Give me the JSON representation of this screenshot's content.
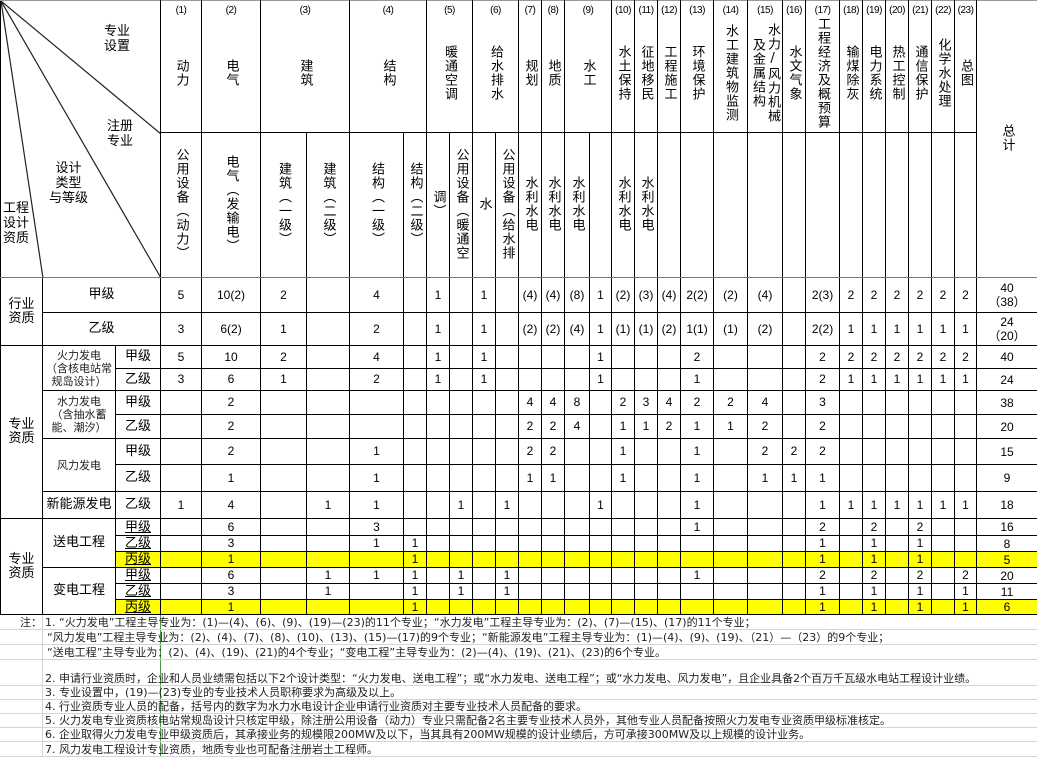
{
  "corner": {
    "specialty_setting": "专业\n设置",
    "registered_specialty": "注册\n专业",
    "design_type_grade": "设计\n类型\n与等级",
    "qualification": "工程\n设计\n资质"
  },
  "groups": [
    {
      "num": "(1)",
      "name": "动力"
    },
    {
      "num": "(2)",
      "name": "电气"
    },
    {
      "num": "(3)",
      "name": "建筑"
    },
    {
      "num": "(4)",
      "name": "结构"
    },
    {
      "num": "(5)",
      "name": "暖通空调"
    },
    {
      "num": "(6)",
      "name": "给水排水"
    },
    {
      "num": "(7)",
      "name": "规划"
    },
    {
      "num": "(8)",
      "name": "地质"
    },
    {
      "num": "(9)",
      "name": "水工"
    },
    {
      "num": "(10)",
      "name": "水土保持"
    },
    {
      "num": "(11)",
      "name": "征地移民"
    },
    {
      "num": "(12)",
      "name": "工程施工"
    },
    {
      "num": "(13)",
      "name": "环境保护"
    },
    {
      "num": "(14)",
      "name": "水工建筑物监测"
    },
    {
      "num": "(15)",
      "name": "水力/风力机械及金属结构"
    },
    {
      "num": "(16)",
      "name": "水文气象"
    },
    {
      "num": "(17)",
      "name": "工程经济及概预算"
    },
    {
      "num": "(18)",
      "name": "输煤除灰"
    },
    {
      "num": "(19)",
      "name": "电力系统"
    },
    {
      "num": "(20)",
      "name": "热工控制"
    },
    {
      "num": "(21)",
      "name": "通信保护"
    },
    {
      "num": "(22)",
      "name": "化学水处理"
    },
    {
      "num": "(23)",
      "name": "总图"
    }
  ],
  "total_label": "总计",
  "subheaders": [
    "公用设备（动力）",
    "电气（发输电）",
    "建筑（一级）",
    "建筑（二级）",
    "结构（一级）",
    "结构（二级）",
    "调）",
    "公用设备（暖通空",
    "水",
    "公用设备（给水排",
    "水利水电",
    "水利水电",
    "水利水电",
    "",
    "水利水电",
    "水利水电",
    "",
    "",
    "",
    "",
    "",
    "",
    "",
    "",
    "",
    "",
    "",
    ""
  ],
  "sections": [
    {
      "label": "行业资质",
      "rows": [
        {
          "grade": "甲级",
          "values": [
            "5",
            "10(2)",
            "2",
            "",
            "4",
            "",
            "1",
            "",
            "1",
            "",
            "(4)",
            "(4)",
            "(8)",
            "1",
            "(2)",
            "(3)",
            "(4)",
            "2(2)",
            "(2)",
            "(4)",
            "",
            "2(3)",
            "2",
            "2",
            "2",
            "2",
            "2",
            "2"
          ],
          "total": "40\n（38）"
        },
        {
          "grade": "乙级",
          "values": [
            "3",
            "6(2)",
            "1",
            "",
            "2",
            "",
            "1",
            "",
            "1",
            "",
            "(2)",
            "(2)",
            "(4)",
            "1",
            "(1)",
            "(1)",
            "(2)",
            "1(1)",
            "(1)",
            "(2)",
            "",
            "2(2)",
            "1",
            "1",
            "1",
            "1",
            "1",
            "1"
          ],
          "total": "24\n（20）"
        }
      ]
    },
    {
      "label": "专业资质",
      "types": [
        {
          "label": "火力发电\n（含核电站常规岛设计）",
          "rows": [
            {
              "grade": "甲级",
              "values": [
                "5",
                "10",
                "2",
                "",
                "4",
                "",
                "1",
                "",
                "1",
                "",
                "",
                "",
                "",
                "1",
                "",
                "",
                "",
                "2",
                "",
                "",
                "",
                "2",
                "2",
                "2",
                "2",
                "2",
                "2",
                "2"
              ],
              "total": "40"
            },
            {
              "grade": "乙级",
              "values": [
                "3",
                "6",
                "1",
                "",
                "2",
                "",
                "1",
                "",
                "1",
                "",
                "",
                "",
                "",
                "1",
                "",
                "",
                "",
                "1",
                "",
                "",
                "",
                "2",
                "1",
                "1",
                "1",
                "1",
                "1",
                "1"
              ],
              "total": "24"
            }
          ]
        },
        {
          "label": "水力发电\n（含抽水蓄能、潮汐）",
          "rows": [
            {
              "grade": "甲级",
              "values": [
                "",
                "2",
                "",
                "",
                "",
                "",
                "",
                "",
                "",
                "",
                "4",
                "4",
                "8",
                "",
                "2",
                "3",
                "4",
                "2",
                "2",
                "4",
                "",
                "3",
                "",
                "",
                "",
                "",
                "",
                ""
              ],
              "total": "38"
            },
            {
              "grade": "乙级",
              "values": [
                "",
                "2",
                "",
                "",
                "",
                "",
                "",
                "",
                "",
                "",
                "2",
                "2",
                "4",
                "",
                "1",
                "1",
                "2",
                "1",
                "1",
                "2",
                "",
                "2",
                "",
                "",
                "",
                "",
                "",
                ""
              ],
              "total": "20"
            }
          ]
        },
        {
          "label": "风力发电",
          "rows": [
            {
              "grade": "甲级",
              "values": [
                "",
                "2",
                "",
                "",
                "1",
                "",
                "",
                "",
                "",
                "",
                "2",
                "2",
                "",
                "",
                "1",
                "",
                "",
                "1",
                "",
                "2",
                "2",
                "2",
                "",
                "",
                "",
                "",
                "",
                ""
              ],
              "total": "15"
            },
            {
              "grade": "乙级",
              "values": [
                "",
                "1",
                "",
                "",
                "1",
                "",
                "",
                "",
                "",
                "",
                "1",
                "1",
                "",
                "",
                "1",
                "",
                "",
                "1",
                "",
                "1",
                "1",
                "1",
                "",
                "",
                "",
                "",
                "",
                ""
              ],
              "total": "9"
            }
          ]
        },
        {
          "label": "新能源发电",
          "rows": [
            {
              "grade": "乙级",
              "values": [
                "1",
                "4",
                "",
                "1",
                "1",
                "",
                "",
                "1",
                "",
                "1",
                "",
                "",
                "",
                "1",
                "",
                "",
                "",
                "1",
                "",
                "",
                "",
                "1",
                "1",
                "1",
                "1",
                "1",
                "1",
                "1"
              ],
              "total": "18"
            }
          ]
        }
      ]
    },
    {
      "label": "专业资质",
      "types": [
        {
          "label": "送电工程",
          "rows": [
            {
              "grade": "甲级",
              "values": [
                "",
                "6",
                "",
                "",
                "3",
                "",
                "",
                "",
                "",
                "",
                "",
                "",
                "",
                "",
                "",
                "",
                "",
                "1",
                "",
                "",
                "",
                "2",
                "",
                "2",
                "",
                "2",
                "",
                ""
              ],
              "total": "16"
            },
            {
              "grade": "乙级",
              "values": [
                "",
                "3",
                "",
                "",
                "1",
                "1",
                "",
                "",
                "",
                "",
                "",
                "",
                "",
                "",
                "",
                "",
                "",
                "",
                "",
                "",
                "",
                "1",
                "",
                "1",
                "",
                "1",
                "",
                ""
              ],
              "total": "8"
            },
            {
              "grade": "丙级",
              "highlight": true,
              "values": [
                "",
                "1",
                "",
                "",
                "",
                "1",
                "",
                "",
                "",
                "",
                "",
                "",
                "",
                "",
                "",
                "",
                "",
                "",
                "",
                "",
                "",
                "1",
                "",
                "1",
                "",
                "1",
                "",
                ""
              ],
              "total": "5"
            }
          ]
        },
        {
          "label": "变电工程",
          "rows": [
            {
              "grade": "甲级",
              "values": [
                "",
                "6",
                "",
                "1",
                "1",
                "1",
                "",
                "1",
                "",
                "1",
                "",
                "",
                "",
                "",
                "",
                "",
                "",
                "1",
                "",
                "",
                "",
                "2",
                "",
                "2",
                "",
                "2",
                "",
                "2"
              ],
              "total": "20"
            },
            {
              "grade": "乙级",
              "values": [
                "",
                "3",
                "",
                "1",
                "",
                "1",
                "",
                "1",
                "",
                "1",
                "",
                "",
                "",
                "",
                "",
                "",
                "",
                "",
                "",
                "",
                "",
                "1",
                "",
                "1",
                "",
                "1",
                "",
                "1"
              ],
              "total": "11"
            },
            {
              "grade": "丙级",
              "highlight": true,
              "values": [
                "",
                "1",
                "",
                "",
                "",
                "1",
                "",
                "",
                "",
                "",
                "",
                "",
                "",
                "",
                "",
                "",
                "",
                "",
                "",
                "",
                "",
                "1",
                "",
                "1",
                "",
                "1",
                "",
                "1"
              ],
              "total": "6"
            }
          ]
        }
      ]
    }
  ],
  "highlight_color": "#ffff00",
  "notes": {
    "label": "注：",
    "lines": [
      "1. “火力发电”工程主导专业为：(1)—(4)、(6)、(9)、(19)—(23)的11个专业；“水力发电”工程主导专业为：(2)、(7)—(15)、(17)的11个专业；",
      "“风力发电”工程主导专业为：(2)、(4)、(7)、(8)、(10)、(13)、(15)—(17)的9个专业；“新能源发电”工程主导专业为：(1)—(4)、(9)、(19)、（21）—（23）的9个专业；",
      "“送电工程”主导专业为：(2)、(4)、(19)、(21)的4个专业；“变电工程”主导专业为：(2)—(4)、(19)、(21)、(23)的6个专业。",
      "2. 申请行业资质时，企业和人员业绩需包括以下2个设计类型：“火力发电、送电工程”；或“水力发电、送电工程”；或“水力发电、风力发电”，且企业具备2个百万千瓦级水电站工程设计业绩。",
      "3. 专业设置中，(19)—(23)专业的专业技术人员职称要求为高级及以上。",
      "4. 行业资质专业人员的配备，括号内的数字为水力水电设计企业申请行业资质对主要专业技术人员配备的要求。",
      "5. 火力发电专业资质核电站常规岛设计只核定甲级，除注册公用设备（动力）专业只需配备2名主要专业技术人员外，其他专业人员配备按照火力发电专业资质甲级标准核定。",
      "6. 企业取得火力发电专业甲级资质后，其承接业务的规模限200MW及以下，当其具有200MW规模的设计业绩后，方可承接300MW及以上规模的设计业务。",
      "7. 风力发电工程设计专业资质，地质专业也可配备注册岩土工程师。"
    ]
  }
}
